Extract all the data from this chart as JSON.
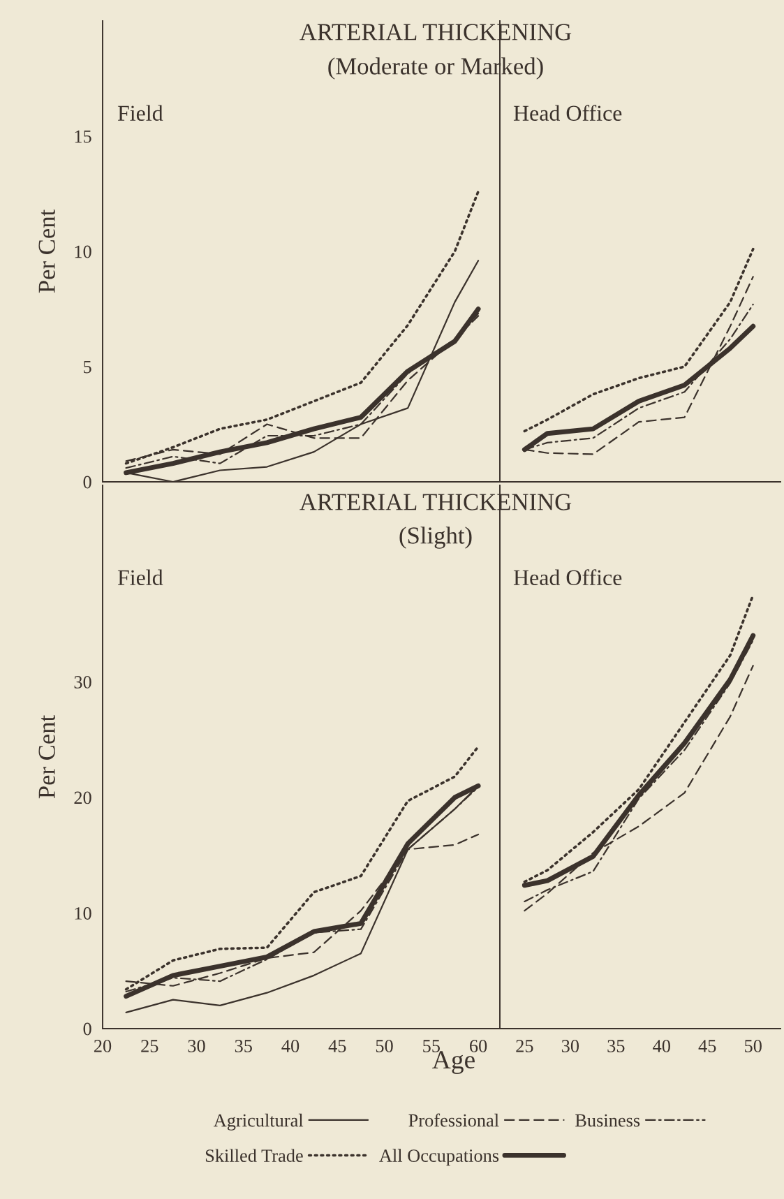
{
  "chart_data": [
    {
      "type": "line",
      "title": "ARTERIAL THICKENING",
      "subtitle": "(Moderate or Marked)",
      "annotations": [
        "Field"
      ],
      "ylabel": "Per Cent",
      "x": [
        22.5,
        27.5,
        32.5,
        37.5,
        42.5,
        47.5,
        52.5,
        57.5,
        60
      ],
      "xlim": [
        20,
        62.3
      ],
      "ylim": [
        0,
        20
      ],
      "yticks": [
        0,
        5,
        10,
        15
      ],
      "tick_labels": "y",
      "grid": false,
      "legend": "bottom",
      "series": [
        {
          "name": "Agricultural",
          "color": "#3b322c",
          "line_style": "solid",
          "values": [
            0.4,
            0,
            0.5,
            0.65,
            1.3,
            2.5,
            3.2,
            7.8,
            9.6
          ]
        },
        {
          "name": "Professional",
          "color": "#3b322c",
          "line_style": "dashed",
          "values": [
            0.9,
            1.4,
            1.2,
            2.5,
            1.9,
            1.9,
            4.4,
            6.2,
            7.3
          ]
        },
        {
          "name": "Business",
          "color": "#3b322c",
          "line_style": "dashdot",
          "values": [
            0.6,
            1.1,
            0.8,
            2.0,
            2.0,
            2.5,
            4.7,
            6.2,
            7.2
          ]
        },
        {
          "name": "Skilled Trade",
          "color": "#3b322c",
          "line_style": "dotted",
          "values": [
            0.8,
            1.5,
            2.3,
            2.7,
            3.5,
            4.3,
            6.8,
            10.0,
            12.6
          ]
        },
        {
          "name": "All Occupations",
          "color": "#3b322c",
          "line_style": "solid",
          "values": [
            0.4,
            0.8,
            1.3,
            1.7,
            2.3,
            2.8,
            4.8,
            6.1,
            7.5
          ]
        }
      ]
    },
    {
      "type": "line",
      "annotations": [
        "Head Office"
      ],
      "x": [
        25,
        27.5,
        32.5,
        37.5,
        42.5,
        47.5,
        50
      ],
      "xlim": [
        22.3,
        53
      ],
      "ylim": [
        0,
        20
      ],
      "tick_labels": false,
      "grid": false,
      "legend": "bottom",
      "series": [
        {
          "name": "Professional",
          "color": "#3b322c",
          "line_style": "dashed",
          "values": [
            1.4,
            1.25,
            1.2,
            2.6,
            2.8,
            6.75,
            8.9
          ]
        },
        {
          "name": "Business",
          "color": "#3b322c",
          "line_style": "dashdot",
          "values": [
            1.4,
            1.7,
            1.9,
            3.2,
            3.9,
            6.2,
            7.7
          ]
        },
        {
          "name": "Skilled Trade",
          "color": "#3b322c",
          "line_style": "dotted",
          "values": [
            2.2,
            2.7,
            3.8,
            4.5,
            5.0,
            7.8,
            10.1
          ]
        },
        {
          "name": "All Occupations",
          "color": "#3b322c",
          "line_style": "solid",
          "values": [
            1.4,
            2.1,
            2.3,
            3.5,
            4.2,
            5.8,
            6.75
          ]
        }
      ]
    },
    {
      "type": "line",
      "title": "ARTERIAL THICKENING",
      "subtitle": "(Slight)",
      "annotations": [
        "Field"
      ],
      "ylabel": "Per Cent",
      "xlabel": "Age",
      "x": [
        22.5,
        27.5,
        32.5,
        37.5,
        42.5,
        47.5,
        52.5,
        57.5,
        60
      ],
      "xlim": [
        20,
        62.3
      ],
      "xticks": [
        20,
        25,
        30,
        35,
        40,
        45,
        50,
        55,
        60
      ],
      "ylim": [
        0,
        47
      ],
      "yticks": [
        0,
        10,
        20,
        30
      ],
      "grid": false,
      "legend": "bottom",
      "series": [
        {
          "name": "Agricultural",
          "color": "#3b322c",
          "line_style": "solid",
          "values": [
            1.4,
            2.5,
            2.0,
            3.1,
            4.6,
            6.5,
            15.5,
            19.0,
            21.0
          ]
        },
        {
          "name": "Professional",
          "color": "#3b322c",
          "line_style": "dashed",
          "values": [
            4.1,
            3.7,
            4.8,
            6.1,
            6.6,
            10.2,
            15.5,
            15.9,
            16.8
          ]
        },
        {
          "name": "Business",
          "color": "#3b322c",
          "line_style": "dashdot",
          "values": [
            3.2,
            4.4,
            4.1,
            6.0,
            8.3,
            8.6,
            15.5,
            19.0,
            20.9
          ]
        },
        {
          "name": "Skilled Trade",
          "color": "#3b322c",
          "line_style": "dotted",
          "values": [
            3.4,
            5.9,
            6.9,
            7.0,
            11.8,
            13.2,
            19.7,
            21.8,
            24.4
          ]
        },
        {
          "name": "All Occupations",
          "color": "#3b322c",
          "line_style": "solid",
          "values": [
            2.8,
            4.6,
            5.4,
            6.2,
            8.4,
            9.1,
            16.0,
            20.0,
            21.0
          ]
        }
      ]
    },
    {
      "type": "line",
      "annotations": [
        "Head Office"
      ],
      "x": [
        25,
        27.5,
        32.5,
        37.5,
        42.5,
        47.5,
        50
      ],
      "xlim": [
        22.3,
        53
      ],
      "xticks": [
        25,
        30,
        35,
        40,
        45,
        50
      ],
      "ylim": [
        0,
        47
      ],
      "tick_labels": "x",
      "grid": false,
      "legend": "bottom",
      "series": [
        {
          "name": "Professional",
          "color": "#3b322c",
          "line_style": "dashed",
          "values": [
            10.2,
            11.7,
            15.2,
            17.5,
            20.4,
            27.0,
            31.4
          ]
        },
        {
          "name": "Business",
          "color": "#3b322c",
          "line_style": "dashdot",
          "values": [
            11.0,
            12.0,
            13.6,
            19.9,
            24.1,
            29.9,
            33.6
          ]
        },
        {
          "name": "Skilled Trade",
          "color": "#3b322c",
          "line_style": "dotted",
          "values": [
            12.7,
            13.7,
            17.0,
            20.7,
            26.5,
            32.3,
            37.5
          ]
        },
        {
          "name": "All Occupations",
          "color": "#3b322c",
          "line_style": "solid",
          "values": [
            12.4,
            12.8,
            14.9,
            20.2,
            24.7,
            30.2,
            34.0
          ]
        }
      ]
    }
  ]
}
